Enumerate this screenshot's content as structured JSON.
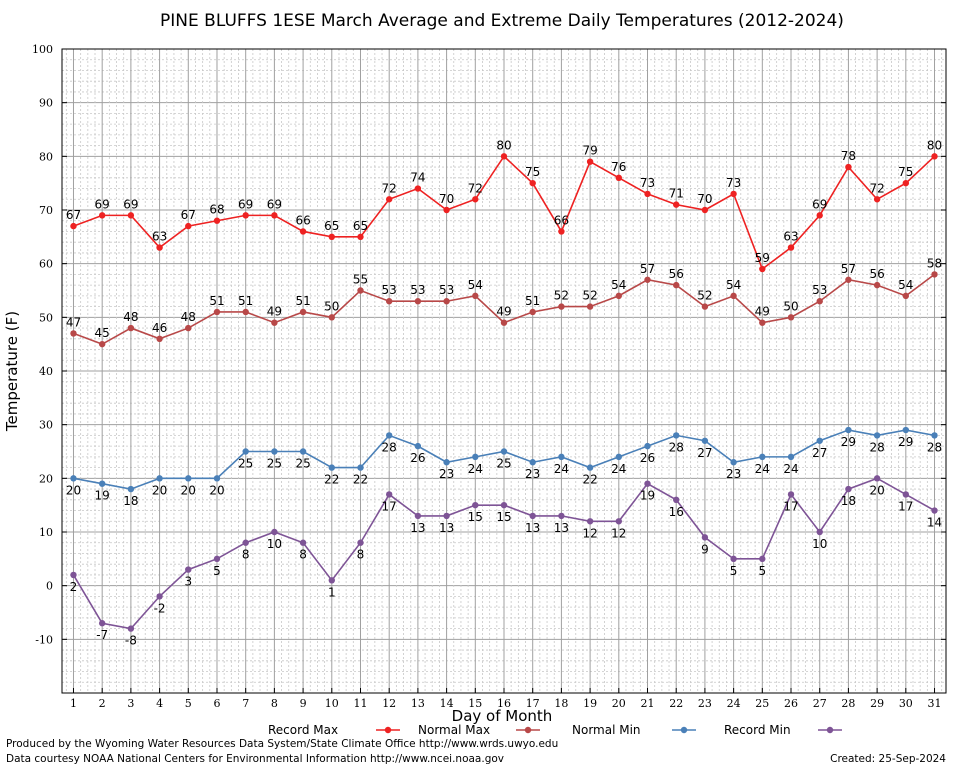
{
  "chart_data": {
    "type": "line",
    "title": "PINE BLUFFS 1ESE March Average and Extreme Daily Temperatures (2012-2024)",
    "xlabel": "Day of Month",
    "ylabel": "Temperature (F)",
    "x": [
      1,
      2,
      3,
      4,
      5,
      6,
      7,
      8,
      9,
      10,
      11,
      12,
      13,
      14,
      15,
      16,
      17,
      18,
      19,
      20,
      21,
      22,
      23,
      24,
      25,
      26,
      27,
      28,
      29,
      30,
      31
    ],
    "xlim": [
      0.6,
      31.4
    ],
    "ylim": [
      -20,
      100
    ],
    "yticks": [
      100,
      90,
      80,
      70,
      60,
      50,
      40,
      30,
      20,
      10,
      0,
      -10
    ],
    "grid": true,
    "legend_position": "bottom",
    "series": [
      {
        "name": "Record Max",
        "color": "#ee2222",
        "label_pos": "above",
        "values": [
          67,
          69,
          69,
          63,
          67,
          68,
          69,
          69,
          66,
          65,
          65,
          72,
          74,
          70,
          72,
          80,
          75,
          66,
          79,
          76,
          73,
          71,
          70,
          73,
          59,
          63,
          69,
          78,
          72,
          75,
          80
        ]
      },
      {
        "name": "Normal Max",
        "color": "#b84848",
        "label_pos": "above",
        "values": [
          47,
          45,
          48,
          46,
          48,
          51,
          51,
          49,
          51,
          50,
          55,
          53,
          53,
          53,
          54,
          49,
          51,
          52,
          52,
          54,
          57,
          56,
          52,
          54,
          49,
          50,
          53,
          57,
          56,
          54,
          58
        ]
      },
      {
        "name": "Normal Min",
        "color": "#4a80b8",
        "label_pos": "below",
        "values": [
          20,
          19,
          18,
          20,
          20,
          20,
          25,
          25,
          25,
          22,
          22,
          28,
          26,
          23,
          24,
          25,
          23,
          24,
          22,
          24,
          26,
          28,
          27,
          23,
          24,
          24,
          27,
          29,
          28,
          29,
          28
        ]
      },
      {
        "name": "Record Min",
        "color": "#7e5496",
        "label_pos": "below",
        "values": [
          2,
          -7,
          -8,
          -2,
          3,
          5,
          8,
          10,
          8,
          1,
          8,
          17,
          13,
          13,
          15,
          15,
          13,
          13,
          12,
          12,
          19,
          16,
          9,
          5,
          5,
          17,
          10,
          18,
          20,
          17,
          14
        ]
      }
    ]
  },
  "footer": {
    "produced_by": "Produced by the Wyoming Water Resources Data System/State Climate Office http://www.wrds.uwyo.edu",
    "courtesy": "Data courtesy NOAA National Centers for Environmental Information http://www.ncei.noaa.gov",
    "created": "Created:  25-Sep-2024"
  }
}
